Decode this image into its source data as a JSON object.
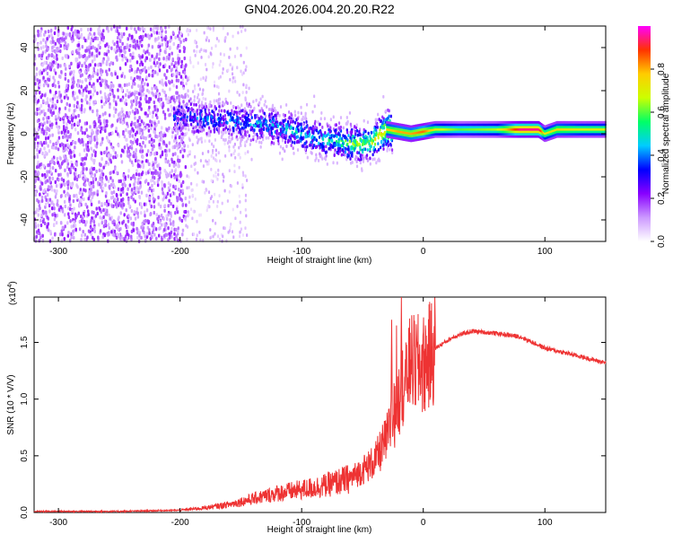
{
  "title": "GN04.2026.004.20.20.R22",
  "chart_data": [
    {
      "type": "heatmap",
      "name": "spectrogram",
      "xlabel": "Height of straight line (km)",
      "ylabel": "Frequency (Hz)",
      "xlim": [
        -320,
        150
      ],
      "ylim": [
        -50,
        50
      ],
      "xticks": [
        -300,
        -200,
        -100,
        0,
        100
      ],
      "xtick_labels": [
        "-300",
        "-200",
        "-100",
        "0",
        "100"
      ],
      "yticks": [
        -40,
        -20,
        0,
        20,
        40
      ],
      "ytick_labels": [
        "-40",
        "-20",
        "0",
        "20",
        "40"
      ],
      "colorbar": {
        "label": "Normalized spectral amplitude",
        "range": [
          0,
          1
        ],
        "ticks": [
          0,
          0.2,
          0.4,
          0.6,
          0.8
        ],
        "tick_labels": [
          "0.0",
          "0.2",
          "0.4",
          "0.6",
          "0.8"
        ],
        "colors": [
          "#ffffff",
          "#cc99ff",
          "#8800ff",
          "#0000ff",
          "#00ccff",
          "#00ff66",
          "#ccff00",
          "#ffcc00",
          "#ff3300",
          "#ff00ff"
        ]
      },
      "ridge": {
        "x": [
          -205,
          -180,
          -160,
          -140,
          -120,
          -100,
          -80,
          -65,
          -50,
          -40,
          -30,
          -20,
          -10,
          0,
          10,
          30,
          60,
          80,
          95,
          100,
          110,
          130,
          150
        ],
        "freq": [
          8,
          7,
          6,
          5,
          3,
          0,
          -3,
          -4,
          -5,
          -3,
          2,
          1,
          0,
          1,
          2,
          2,
          2,
          2,
          2,
          0,
          2,
          2,
          2
        ],
        "amp": [
          0.3,
          0.35,
          0.35,
          0.4,
          0.4,
          0.45,
          0.45,
          0.55,
          0.6,
          0.7,
          0.75,
          0.8,
          0.8,
          0.85,
          0.7,
          0.6,
          0.65,
          0.95,
          0.95,
          0.7,
          0.75,
          0.7,
          0.7
        ]
      }
    },
    {
      "type": "line",
      "name": "snr",
      "xlabel": "Height of straight line (km)",
      "ylabel": "SNR (10 * V/V)",
      "scale_label": "(x10",
      "scale_exp": "4",
      "xlim": [
        -320,
        150
      ],
      "ylim": [
        0,
        1.9
      ],
      "xticks": [
        -300,
        -200,
        -100,
        0,
        100
      ],
      "xtick_labels": [
        "-300",
        "-200",
        "-100",
        "0",
        "100"
      ],
      "yticks": [
        0,
        0.5,
        1.0,
        1.5
      ],
      "ytick_labels": [
        "0.0",
        "0.5",
        "1.0",
        "1.5"
      ],
      "color": "#ee3333",
      "series": [
        {
          "name": "SNR",
          "x": [
            -320,
            -250,
            -200,
            -180,
            -160,
            -140,
            -120,
            -100,
            -80,
            -60,
            -40,
            -30,
            -20,
            -15,
            -10,
            0,
            10,
            25,
            40,
            60,
            80,
            100,
            120,
            150
          ],
          "y": [
            0.01,
            0.01,
            0.02,
            0.04,
            0.07,
            0.12,
            0.17,
            0.2,
            0.24,
            0.3,
            0.45,
            0.65,
            1.0,
            1.2,
            1.3,
            1.3,
            1.45,
            1.55,
            1.6,
            1.58,
            1.55,
            1.45,
            1.4,
            1.32
          ]
        }
      ],
      "spikes": [
        {
          "x": -26,
          "y": 1.7
        },
        {
          "x": -22,
          "y": 1.65
        },
        {
          "x": -18,
          "y": 1.9
        },
        {
          "x": -14,
          "y": 1.55
        },
        {
          "x": -10,
          "y": 1.35
        }
      ]
    }
  ]
}
